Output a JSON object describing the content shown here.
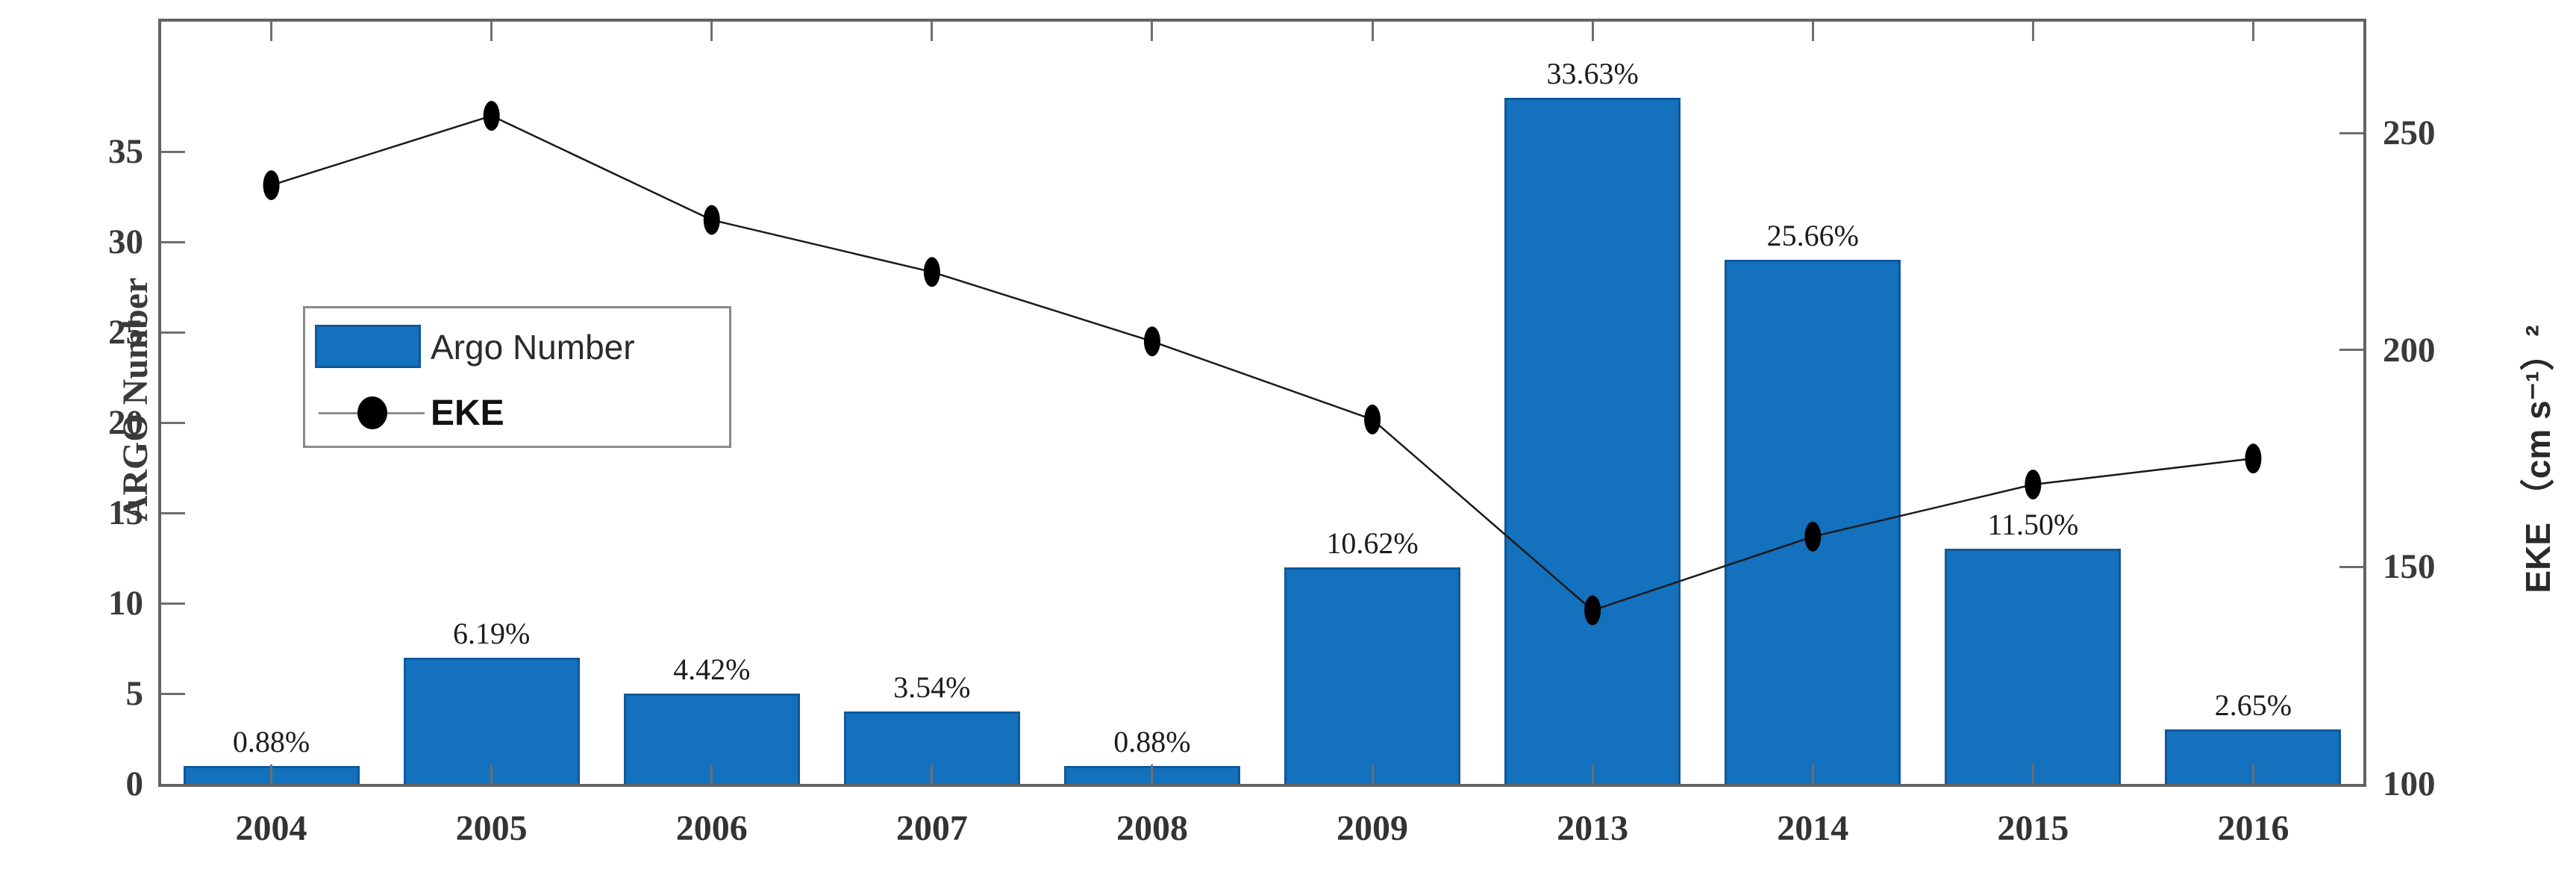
{
  "chart_data": {
    "type": "bar",
    "subtype": "bar+line-combo",
    "title": "",
    "categories": [
      "2004",
      "2005",
      "2006",
      "2007",
      "2008",
      "2009",
      "2013",
      "2014",
      "2015",
      "2016"
    ],
    "series": [
      {
        "name": "Argo Number",
        "type": "bar",
        "axis": "left",
        "color": "#1371bd",
        "values": [
          1,
          7,
          5,
          4,
          1,
          12,
          38,
          29,
          13,
          3
        ],
        "percent_labels": [
          "0.88%",
          "6.19%",
          "4.42%",
          "3.54%",
          "0.88%",
          "10.62%",
          "33.63%",
          "25.66%",
          "11.50%",
          "2.65%"
        ]
      },
      {
        "name": "EKE",
        "type": "line",
        "axis": "right",
        "color": "#000000",
        "marker": "filled-ellipse",
        "values": [
          238,
          254,
          230,
          218,
          202,
          184,
          140,
          157,
          169,
          175
        ]
      }
    ],
    "left_axis": {
      "label": "ARGO Number",
      "ticks": [
        0,
        5,
        10,
        15,
        20,
        25,
        30,
        35
      ],
      "range": [
        0,
        42.2
      ]
    },
    "right_axis": {
      "label": "EKE （cm s⁻¹）²",
      "ticks": [
        100,
        150,
        200,
        250
      ],
      "range": [
        100,
        275.7
      ]
    },
    "legend": {
      "position": "upper-left-inside",
      "entries": [
        "Argo Number",
        "EKE"
      ]
    },
    "grid": false,
    "frame": true
  }
}
